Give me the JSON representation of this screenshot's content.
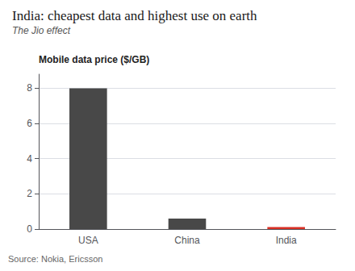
{
  "chart_data": {
    "type": "bar",
    "title": "India: cheapest data and highest use on earth",
    "subtitle": "The Jio effect",
    "ylabel": "Mobile data price ($/GB)",
    "source": "Source: Nokia, Ericsson",
    "categories": [
      "USA",
      "China",
      "India"
    ],
    "values": [
      8.0,
      0.6,
      0.12
    ],
    "colors": [
      "#484848",
      "#484848",
      "#d93025"
    ],
    "ylim": [
      0,
      8.8
    ],
    "yticks": [
      0,
      2,
      4,
      6,
      8
    ],
    "grid": true
  }
}
